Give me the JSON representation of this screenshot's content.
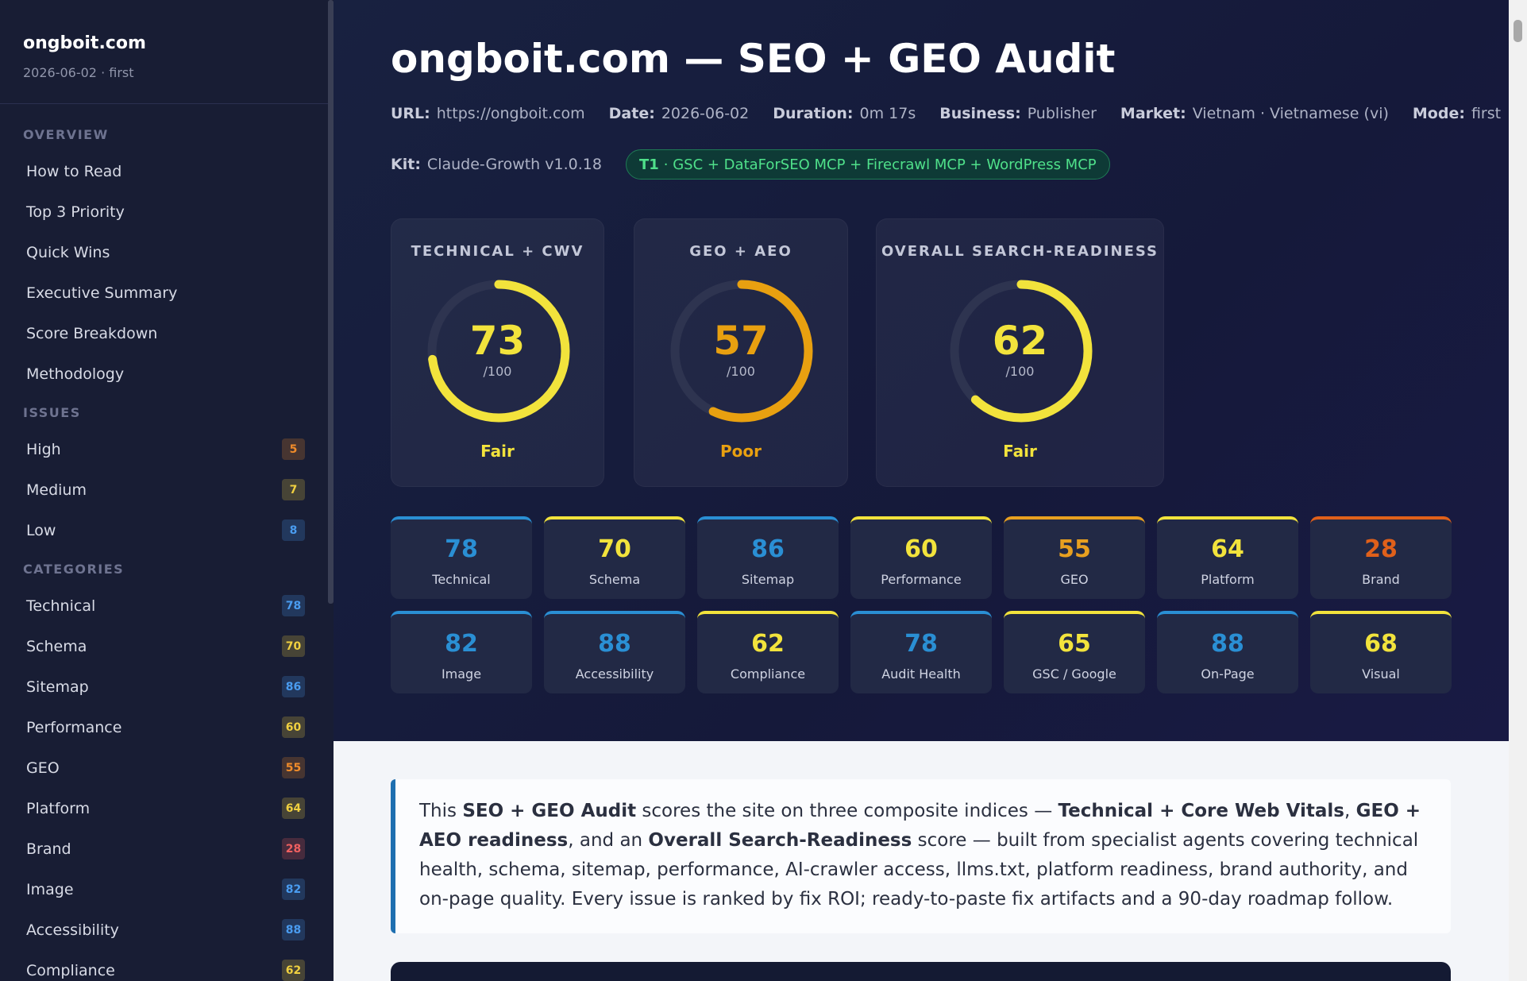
{
  "sidebar": {
    "site": "ongboit.com",
    "meta": "2026-06-02 · first",
    "sections": [
      {
        "heading": "OVERVIEW",
        "items": [
          {
            "label": "How to Read"
          },
          {
            "label": "Top 3 Priority"
          },
          {
            "label": "Quick Wins"
          },
          {
            "label": "Executive Summary"
          },
          {
            "label": "Score Breakdown"
          },
          {
            "label": "Methodology"
          }
        ]
      },
      {
        "heading": "ISSUES",
        "items": [
          {
            "label": "High",
            "count": 5,
            "color": "#f08c2a"
          },
          {
            "label": "Medium",
            "count": 7,
            "color": "#f0d040"
          },
          {
            "label": "Low",
            "count": 8,
            "color": "#4a9cf0"
          }
        ]
      },
      {
        "heading": "CATEGORIES",
        "items": [
          {
            "label": "Technical",
            "count": 78,
            "color": "#4a9cf0"
          },
          {
            "label": "Schema",
            "count": 70,
            "color": "#f0d040"
          },
          {
            "label": "Sitemap",
            "count": 86,
            "color": "#4a9cf0"
          },
          {
            "label": "Performance",
            "count": 60,
            "color": "#f0d040"
          },
          {
            "label": "GEO",
            "count": 55,
            "color": "#f08c2a"
          },
          {
            "label": "Platform",
            "count": 64,
            "color": "#f0d040"
          },
          {
            "label": "Brand",
            "count": 28,
            "color": "#f06060"
          },
          {
            "label": "Image",
            "count": 82,
            "color": "#4a9cf0"
          },
          {
            "label": "Accessibility",
            "count": 88,
            "color": "#4a9cf0"
          },
          {
            "label": "Compliance",
            "count": 62,
            "color": "#f0d040"
          }
        ]
      }
    ]
  },
  "header": {
    "title": "ongboit.com — SEO + GEO Audit",
    "meta": [
      {
        "key": "URL:",
        "value": "https://ongboit.com"
      },
      {
        "key": "Date:",
        "value": "2026-06-02"
      },
      {
        "key": "Duration:",
        "value": "0m 17s"
      },
      {
        "key": "Business:",
        "value": "Publisher"
      },
      {
        "key": "Market:",
        "value": "Vietnam · Vietnamese (vi)"
      },
      {
        "key": "Mode:",
        "value": "first"
      }
    ],
    "kit": {
      "key": "Kit:",
      "value": "Claude-Growth v1.0.18"
    },
    "tier": {
      "code": "T1",
      "text": "· GSC + DataForSEO MCP + Firecrawl MCP + WordPress MCP"
    }
  },
  "gauges": [
    {
      "title": "TECHNICAL + CWV",
      "score": 73,
      "max": {
        "value": 100,
        "label": "/100"
      },
      "rating": "Fair",
      "color": "#f2e33c"
    },
    {
      "title": "GEO + AEO",
      "score": 57,
      "max": {
        "value": 100,
        "label": "/100"
      },
      "rating": "Poor",
      "color": "#e8a010"
    },
    {
      "title": "OVERALL SEARCH-READINESS",
      "score": 62,
      "max": {
        "value": 100,
        "label": "/100"
      },
      "rating": "Fair",
      "color": "#f2e33c"
    }
  ],
  "tiles": [
    {
      "score": 78,
      "label": "Technical",
      "color": "#2a8fd4"
    },
    {
      "score": 70,
      "label": "Schema",
      "color": "#f2e33c"
    },
    {
      "score": 86,
      "label": "Sitemap",
      "color": "#2a8fd4"
    },
    {
      "score": 60,
      "label": "Performance",
      "color": "#f2e33c"
    },
    {
      "score": 55,
      "label": "GEO",
      "color": "#e8a020"
    },
    {
      "score": 64,
      "label": "Platform",
      "color": "#f2e33c"
    },
    {
      "score": 28,
      "label": "Brand",
      "color": "#e0601a"
    },
    {
      "score": 82,
      "label": "Image",
      "color": "#2a8fd4"
    },
    {
      "score": 88,
      "label": "Accessibility",
      "color": "#2a8fd4"
    },
    {
      "score": 62,
      "label": "Compliance",
      "color": "#f2e33c"
    },
    {
      "score": 78,
      "label": "Audit Health",
      "color": "#2a8fd4"
    },
    {
      "score": 65,
      "label": "GSC / Google",
      "color": "#f2e33c"
    },
    {
      "score": 88,
      "label": "On-Page",
      "color": "#2a8fd4"
    },
    {
      "score": 68,
      "label": "Visual",
      "color": "#f2e33c"
    }
  ],
  "intro": [
    {
      "text": "This "
    },
    {
      "text": "SEO + GEO Audit",
      "bold": true
    },
    {
      "text": " scores the site on three composite indices — "
    },
    {
      "text": "Technical + Core Web Vitals",
      "bold": true
    },
    {
      "text": ", "
    },
    {
      "text": "GEO + AEO readiness",
      "bold": true
    },
    {
      "text": ", and an "
    },
    {
      "text": "Overall Search-Readiness",
      "bold": true
    },
    {
      "text": " score — built from specialist agents covering technical health, schema, sitemap, performance, AI-crawler access, llms.txt, platform readiness, brand authority, and on-page quality. Every issue is ranked by fix ROI; ready-to-paste fix artifacts and a 90-day roadmap follow."
    }
  ]
}
